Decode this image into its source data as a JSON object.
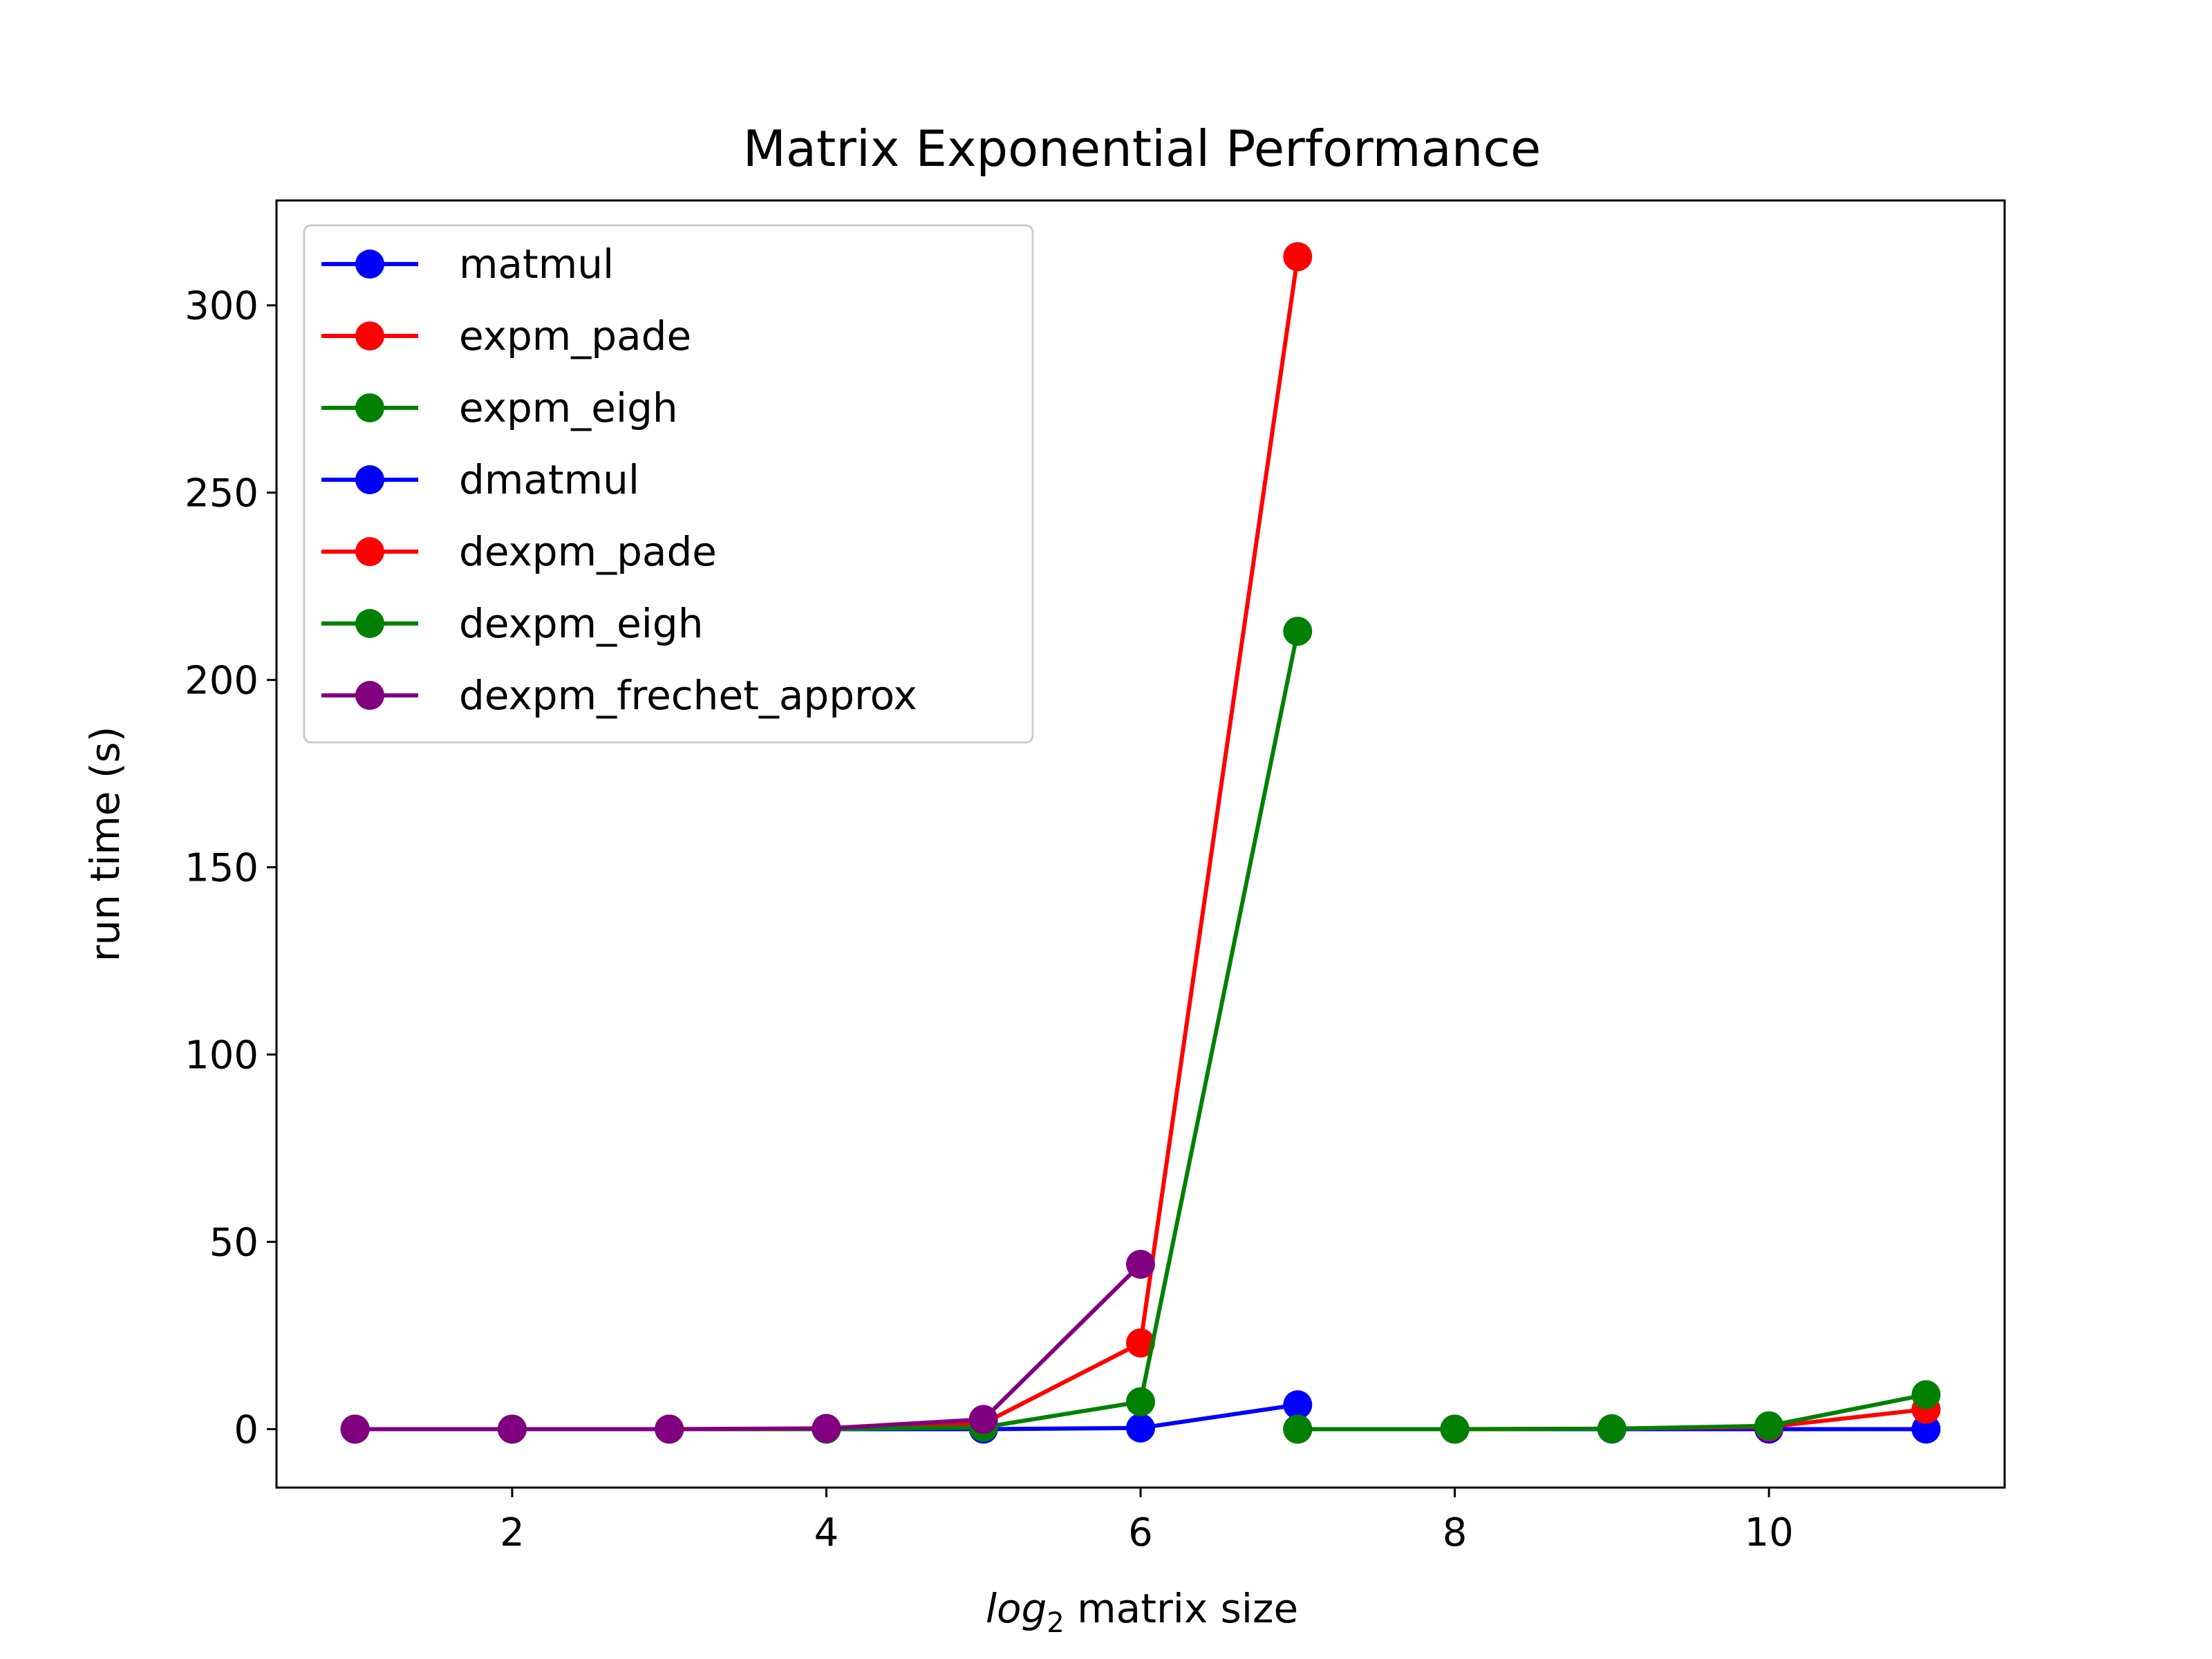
{
  "chart_data": {
    "type": "line",
    "title": "Matrix Exponential Performance",
    "xlabel": {
      "main": "log",
      "subscript": "2",
      "rest": " matrix size"
    },
    "ylabel": "run time (s)",
    "xlim": [
      0.5,
      11.5
    ],
    "ylim": [
      -15.6,
      328
    ],
    "xticks": [
      2,
      4,
      6,
      8,
      10
    ],
    "yticks": [
      0,
      50,
      100,
      150,
      200,
      250,
      300
    ],
    "grid": false,
    "legend_position": "upper-left",
    "series": [
      {
        "name": "matmul",
        "color": "#0000ff",
        "x": [
          1,
          2,
          3,
          4,
          5,
          6,
          7
        ],
        "y": [
          0,
          0,
          0,
          0,
          0,
          0.3,
          6.5
        ]
      },
      {
        "name": "expm_pade",
        "color": "#ff0000",
        "x": [
          1,
          2,
          3,
          4,
          5,
          6,
          7
        ],
        "y": [
          0,
          0,
          0,
          0.1,
          1.5,
          23,
          313
        ]
      },
      {
        "name": "expm_eigh",
        "color": "#008000",
        "x": [
          1,
          2,
          3,
          4,
          5,
          6,
          7
        ],
        "y": [
          0,
          0,
          0,
          0,
          0.5,
          7.3,
          213
        ]
      },
      {
        "name": "dmatmul",
        "color": "#0000ff",
        "x": [
          7,
          8,
          9,
          10,
          11
        ],
        "y": [
          0,
          0,
          0,
          0,
          0
        ]
      },
      {
        "name": "dexpm_pade",
        "color": "#ff0000",
        "x": [
          7,
          8,
          9,
          10,
          11
        ],
        "y": [
          0,
          0,
          0.1,
          0.6,
          5.3
        ]
      },
      {
        "name": "dexpm_eigh",
        "color": "#008000",
        "x": [
          7,
          8,
          9,
          10,
          11
        ],
        "y": [
          0,
          0,
          0.1,
          0.9,
          9.2
        ]
      },
      {
        "name": "dexpm_frechet_approx",
        "color": "#800080",
        "x": [
          1,
          2,
          3,
          4,
          5,
          6
        ],
        "y": [
          0,
          0,
          0,
          0.2,
          2.6,
          44
        ]
      }
    ]
  }
}
